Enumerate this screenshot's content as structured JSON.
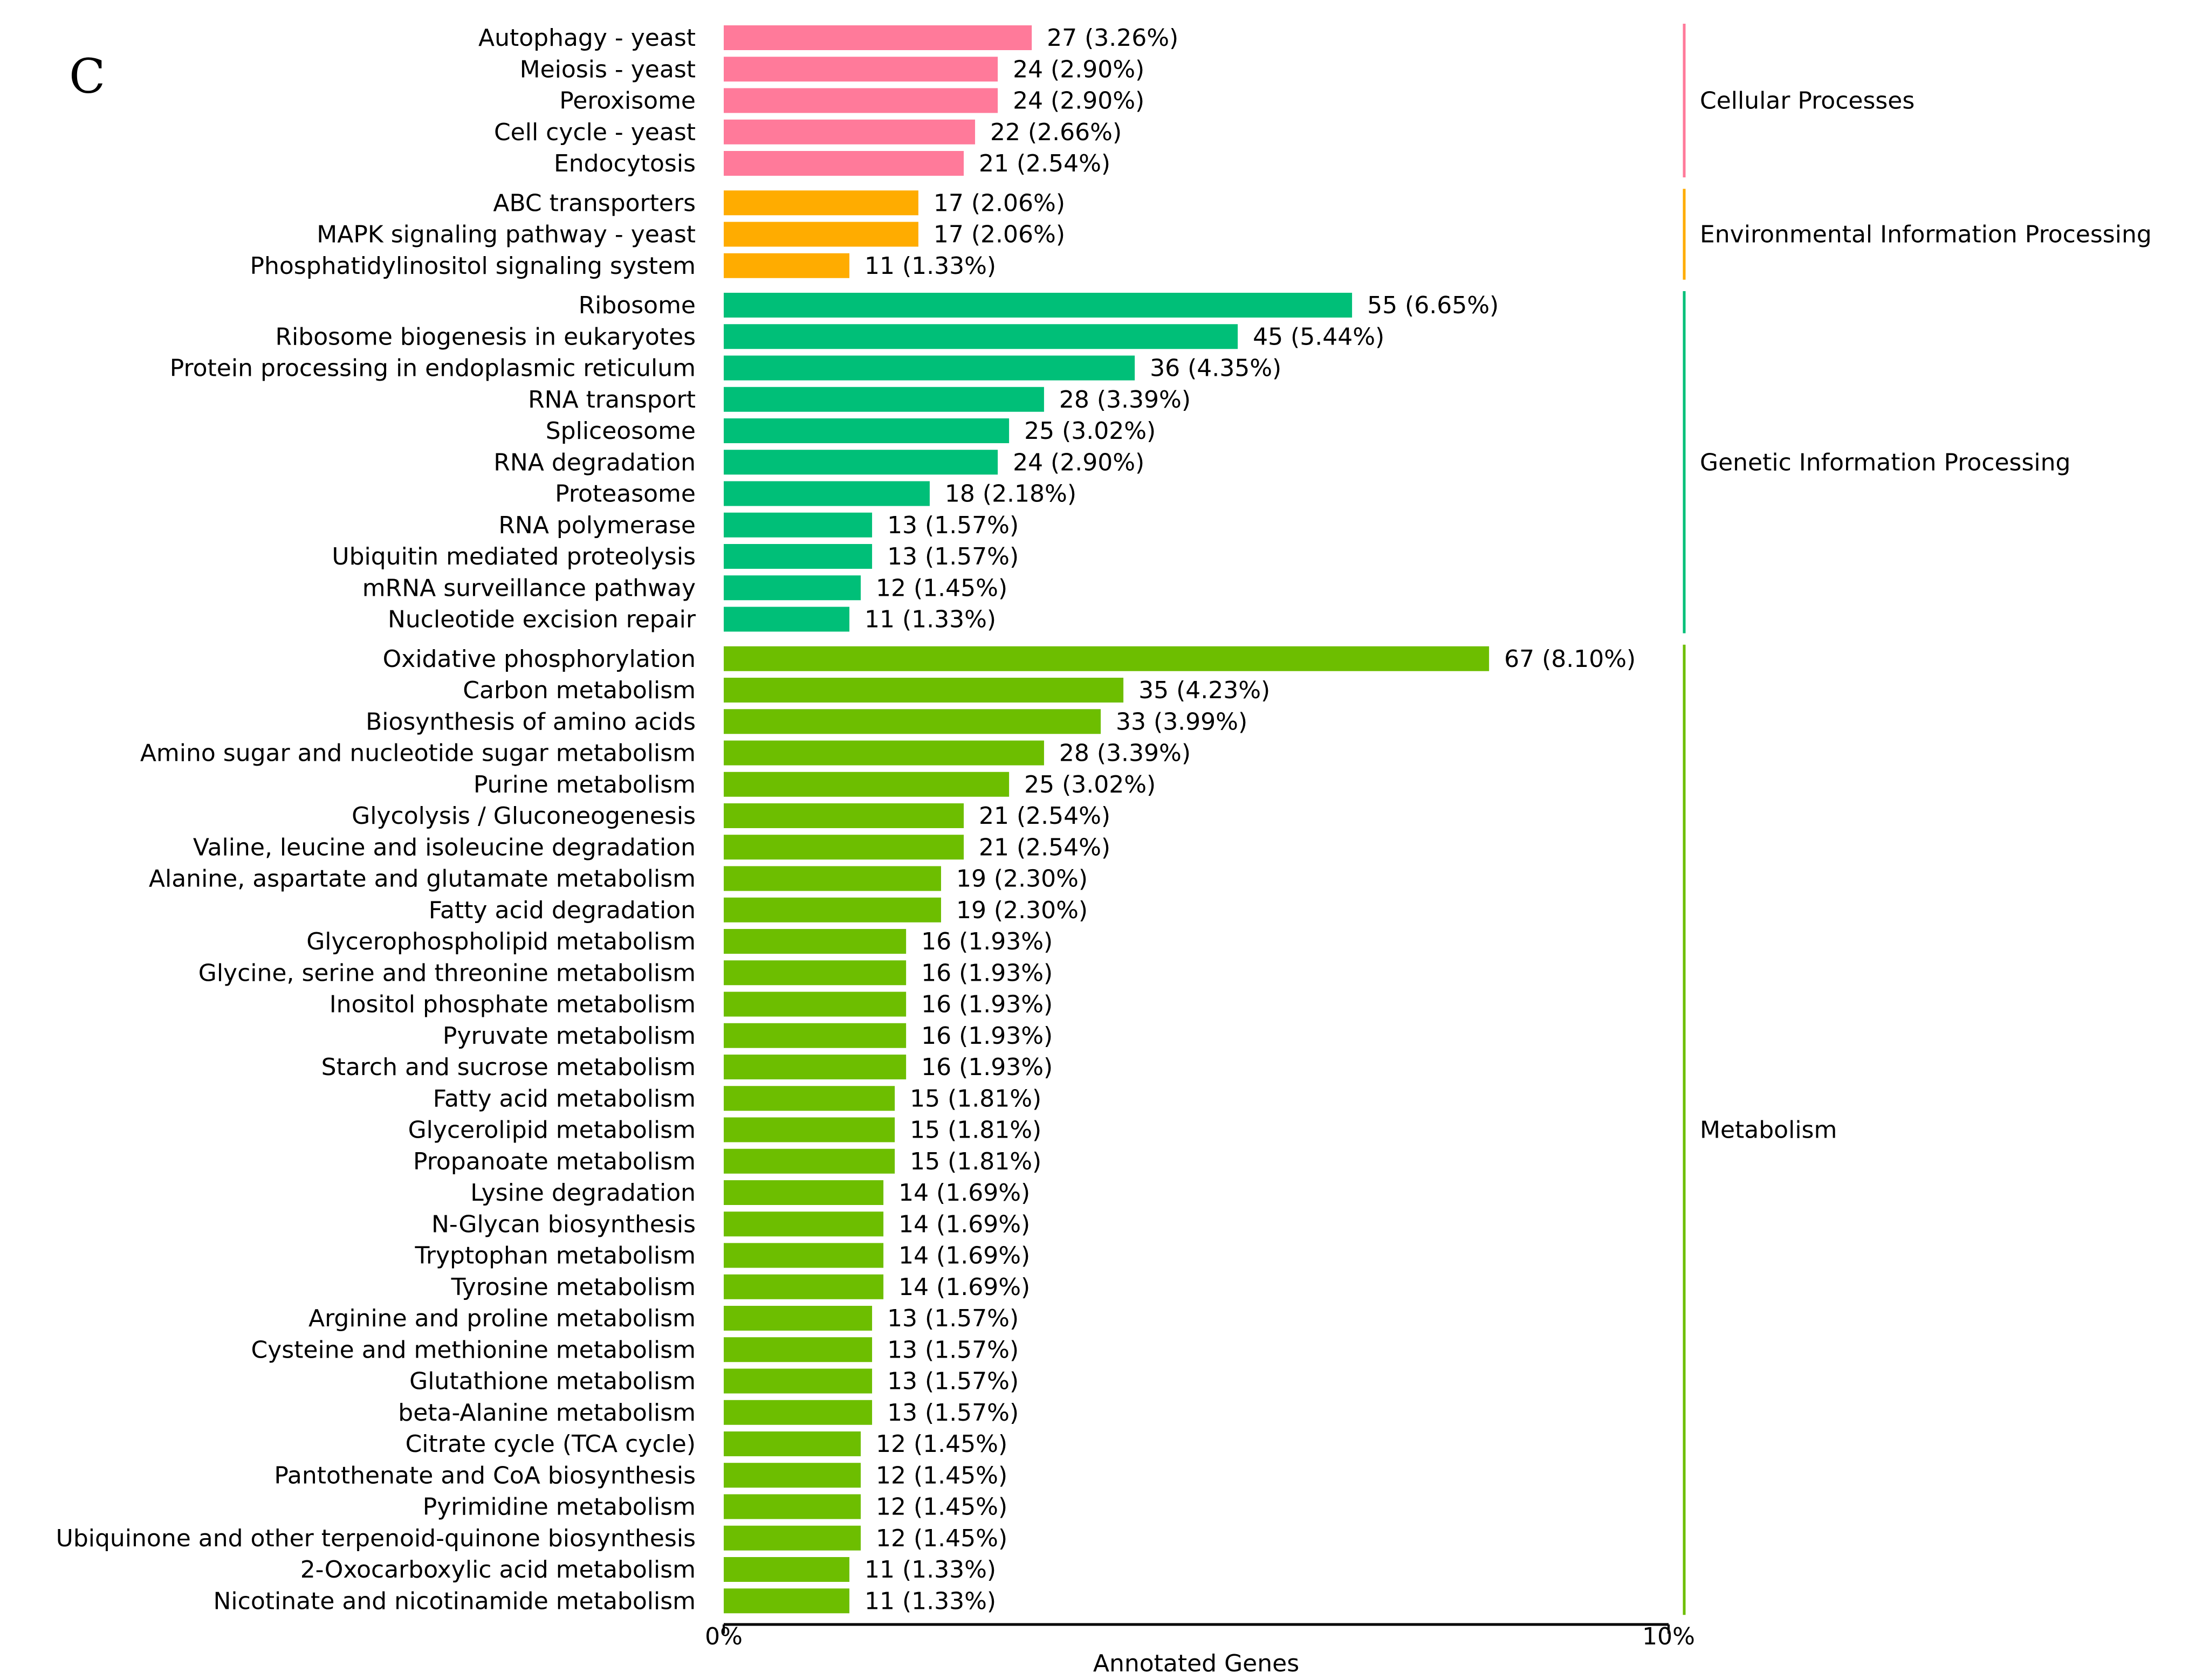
{
  "panel_label": "C",
  "chart_data": {
    "type": "bar",
    "orientation": "horizontal",
    "title": "",
    "xlabel": "Annotated Genes",
    "ylabel": "",
    "xlim_percent": [
      0,
      10
    ],
    "x_ticks": [
      "0%",
      "10%"
    ],
    "grid": false,
    "groups": [
      {
        "name": "Cellular Processes",
        "color": "#FF7A9A",
        "items": [
          {
            "label": "Autophagy - yeast",
            "value": 27,
            "percent": "3.26%"
          },
          {
            "label": "Meiosis - yeast",
            "value": 24,
            "percent": "2.90%"
          },
          {
            "label": "Peroxisome",
            "value": 24,
            "percent": "2.90%"
          },
          {
            "label": "Cell cycle - yeast",
            "value": 22,
            "percent": "2.66%"
          },
          {
            "label": "Endocytosis",
            "value": 21,
            "percent": "2.54%"
          }
        ]
      },
      {
        "name": "Environmental Information Processing",
        "color": "#FFAC00",
        "items": [
          {
            "label": "ABC transporters",
            "value": 17,
            "percent": "2.06%"
          },
          {
            "label": "MAPK signaling pathway - yeast",
            "value": 17,
            "percent": "2.06%"
          },
          {
            "label": "Phosphatidylinositol signaling system",
            "value": 11,
            "percent": "1.33%"
          }
        ]
      },
      {
        "name": "Genetic Information Processing",
        "color": "#00BF78",
        "items": [
          {
            "label": "Ribosome",
            "value": 55,
            "percent": "6.65%"
          },
          {
            "label": "Ribosome biogenesis in eukaryotes",
            "value": 45,
            "percent": "5.44%"
          },
          {
            "label": "Protein processing in endoplasmic reticulum",
            "value": 36,
            "percent": "4.35%"
          },
          {
            "label": "RNA transport",
            "value": 28,
            "percent": "3.39%"
          },
          {
            "label": "Spliceosome",
            "value": 25,
            "percent": "3.02%"
          },
          {
            "label": "RNA degradation",
            "value": 24,
            "percent": "2.90%"
          },
          {
            "label": "Proteasome",
            "value": 18,
            "percent": "2.18%"
          },
          {
            "label": "RNA polymerase",
            "value": 13,
            "percent": "1.57%"
          },
          {
            "label": "Ubiquitin mediated proteolysis",
            "value": 13,
            "percent": "1.57%"
          },
          {
            "label": "mRNA surveillance pathway",
            "value": 12,
            "percent": "1.45%"
          },
          {
            "label": "Nucleotide excision repair",
            "value": 11,
            "percent": "1.33%"
          }
        ]
      },
      {
        "name": "Metabolism",
        "color": "#6DBE00",
        "items": [
          {
            "label": "Oxidative phosphorylation",
            "value": 67,
            "percent": "8.10%"
          },
          {
            "label": "Carbon metabolism",
            "value": 35,
            "percent": "4.23%"
          },
          {
            "label": "Biosynthesis of amino acids",
            "value": 33,
            "percent": "3.99%"
          },
          {
            "label": "Amino sugar and nucleotide sugar metabolism",
            "value": 28,
            "percent": "3.39%"
          },
          {
            "label": "Purine metabolism",
            "value": 25,
            "percent": "3.02%"
          },
          {
            "label": "Glycolysis / Gluconeogenesis",
            "value": 21,
            "percent": "2.54%"
          },
          {
            "label": "Valine, leucine and isoleucine degradation",
            "value": 21,
            "percent": "2.54%"
          },
          {
            "label": "Alanine, aspartate and glutamate metabolism",
            "value": 19,
            "percent": "2.30%"
          },
          {
            "label": "Fatty acid degradation",
            "value": 19,
            "percent": "2.30%"
          },
          {
            "label": "Glycerophospholipid metabolism",
            "value": 16,
            "percent": "1.93%"
          },
          {
            "label": "Glycine, serine and threonine metabolism",
            "value": 16,
            "percent": "1.93%"
          },
          {
            "label": "Inositol phosphate metabolism",
            "value": 16,
            "percent": "1.93%"
          },
          {
            "label": "Pyruvate metabolism",
            "value": 16,
            "percent": "1.93%"
          },
          {
            "label": "Starch and sucrose metabolism",
            "value": 16,
            "percent": "1.93%"
          },
          {
            "label": "Fatty acid metabolism",
            "value": 15,
            "percent": "1.81%"
          },
          {
            "label": "Glycerolipid metabolism",
            "value": 15,
            "percent": "1.81%"
          },
          {
            "label": "Propanoate metabolism",
            "value": 15,
            "percent": "1.81%"
          },
          {
            "label": "Lysine degradation",
            "value": 14,
            "percent": "1.69%"
          },
          {
            "label": "N-Glycan biosynthesis",
            "value": 14,
            "percent": "1.69%"
          },
          {
            "label": "Tryptophan metabolism",
            "value": 14,
            "percent": "1.69%"
          },
          {
            "label": "Tyrosine metabolism",
            "value": 14,
            "percent": "1.69%"
          },
          {
            "label": "Arginine and proline metabolism",
            "value": 13,
            "percent": "1.57%"
          },
          {
            "label": "Cysteine and methionine metabolism",
            "value": 13,
            "percent": "1.57%"
          },
          {
            "label": "Glutathione metabolism",
            "value": 13,
            "percent": "1.57%"
          },
          {
            "label": "beta-Alanine metabolism",
            "value": 13,
            "percent": "1.57%"
          },
          {
            "label": "Citrate cycle (TCA cycle)",
            "value": 12,
            "percent": "1.45%"
          },
          {
            "label": "Pantothenate and CoA biosynthesis",
            "value": 12,
            "percent": "1.45%"
          },
          {
            "label": "Pyrimidine metabolism",
            "value": 12,
            "percent": "1.45%"
          },
          {
            "label": "Ubiquinone and other terpenoid-quinone biosynthesis",
            "value": 12,
            "percent": "1.45%"
          },
          {
            "label": "2-Oxocarboxylic acid metabolism",
            "value": 11,
            "percent": "1.33%"
          },
          {
            "label": "Nicotinate and nicotinamide metabolism",
            "value": 11,
            "percent": "1.33%"
          }
        ]
      }
    ]
  }
}
